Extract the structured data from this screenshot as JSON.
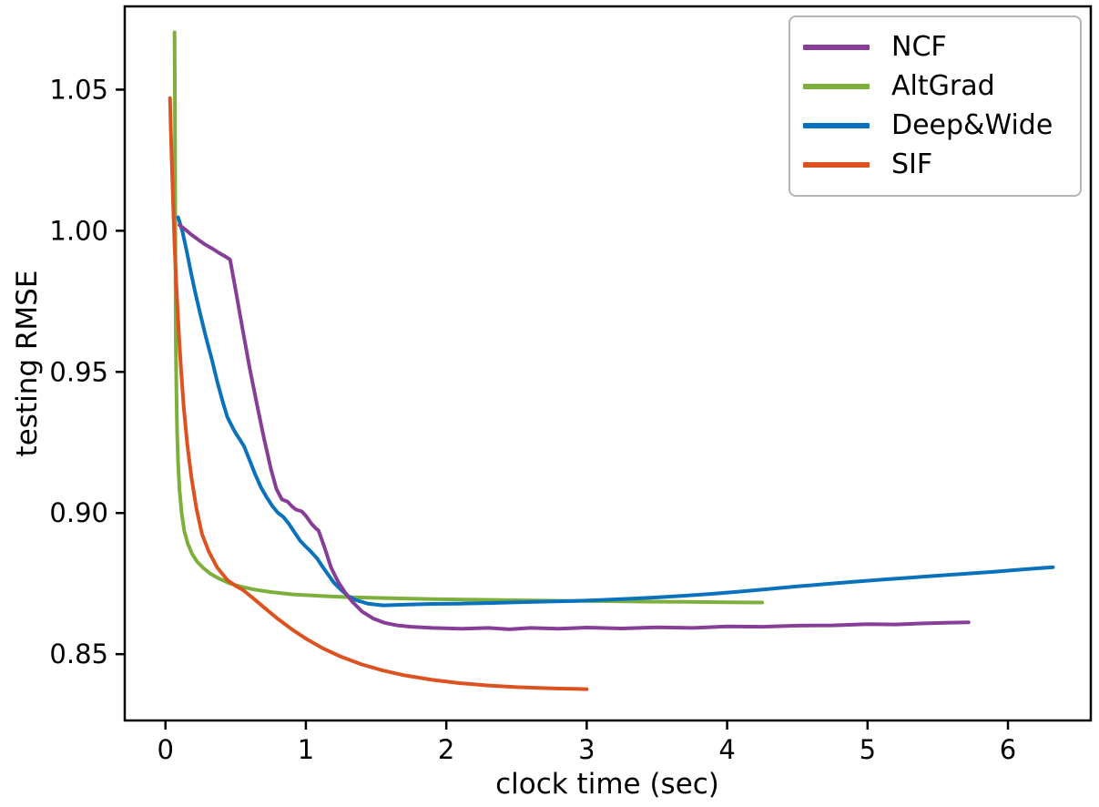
{
  "chart_data": {
    "type": "line",
    "title": "",
    "xlabel": "clock time (sec)",
    "ylabel": "testing RMSE",
    "xlim": [
      -0.29,
      6.59
    ],
    "ylim": [
      0.8265,
      1.0795
    ],
    "grid": false,
    "legend_position": "upper right",
    "xticks": [
      {
        "v": 0,
        "label": "0"
      },
      {
        "v": 1,
        "label": "1"
      },
      {
        "v": 2,
        "label": "2"
      },
      {
        "v": 3,
        "label": "3"
      },
      {
        "v": 4,
        "label": "4"
      },
      {
        "v": 5,
        "label": "5"
      },
      {
        "v": 6,
        "label": "6"
      }
    ],
    "yticks": [
      {
        "v": 0.85,
        "label": "0.85"
      },
      {
        "v": 0.9,
        "label": "0.90"
      },
      {
        "v": 0.95,
        "label": "0.95"
      },
      {
        "v": 1.0,
        "label": "1.00"
      },
      {
        "v": 1.05,
        "label": "1.05"
      }
    ],
    "series": [
      {
        "name": "NCF",
        "color": "#873E97",
        "zorder": 3,
        "points": [
          [
            0.1,
            1.002
          ],
          [
            0.14,
            1.0005
          ],
          [
            0.18,
            0.9988
          ],
          [
            0.23,
            0.997
          ],
          [
            0.28,
            0.9952
          ],
          [
            0.33,
            0.9938
          ],
          [
            0.38,
            0.9922
          ],
          [
            0.43,
            0.9908
          ],
          [
            0.46,
            0.9898
          ],
          [
            0.5,
            0.979
          ],
          [
            0.55,
            0.965
          ],
          [
            0.6,
            0.9512
          ],
          [
            0.65,
            0.9388
          ],
          [
            0.7,
            0.9268
          ],
          [
            0.75,
            0.9158
          ],
          [
            0.79,
            0.9085
          ],
          [
            0.83,
            0.9048
          ],
          [
            0.87,
            0.904
          ],
          [
            0.9,
            0.9024
          ],
          [
            0.93,
            0.9012
          ],
          [
            0.97,
            0.9006
          ],
          [
            1.0,
            0.899
          ],
          [
            1.04,
            0.8962
          ],
          [
            1.07,
            0.8946
          ],
          [
            1.09,
            0.8938
          ],
          [
            1.13,
            0.8882
          ],
          [
            1.18,
            0.8806
          ],
          [
            1.23,
            0.8756
          ],
          [
            1.28,
            0.8718
          ],
          [
            1.33,
            0.8686
          ],
          [
            1.4,
            0.8651
          ],
          [
            1.48,
            0.8626
          ],
          [
            1.56,
            0.8611
          ],
          [
            1.65,
            0.8602
          ],
          [
            1.75,
            0.8597
          ],
          [
            1.9,
            0.8593
          ],
          [
            2.1,
            0.859
          ],
          [
            2.3,
            0.8593
          ],
          [
            2.45,
            0.8588
          ],
          [
            2.6,
            0.8593
          ],
          [
            2.8,
            0.859
          ],
          [
            3.0,
            0.8594
          ],
          [
            3.25,
            0.8591
          ],
          [
            3.5,
            0.8595
          ],
          [
            3.75,
            0.8593
          ],
          [
            4.0,
            0.8598
          ],
          [
            4.25,
            0.8597
          ],
          [
            4.5,
            0.8601
          ],
          [
            4.75,
            0.8602
          ],
          [
            5.0,
            0.8606
          ],
          [
            5.2,
            0.8605
          ],
          [
            5.4,
            0.8609
          ],
          [
            5.55,
            0.8611
          ],
          [
            5.72,
            0.8613
          ]
        ]
      },
      {
        "name": "AltGrad",
        "color": "#7CAF3B",
        "zorder": 1,
        "points": [
          [
            0.065,
            1.0703
          ],
          [
            0.067,
            1.046
          ],
          [
            0.069,
            1.015
          ],
          [
            0.071,
            0.985
          ],
          [
            0.074,
            0.96
          ],
          [
            0.078,
            0.942
          ],
          [
            0.083,
            0.929
          ],
          [
            0.09,
            0.918
          ],
          [
            0.1,
            0.9085
          ],
          [
            0.115,
            0.9
          ],
          [
            0.135,
            0.8935
          ],
          [
            0.16,
            0.889
          ],
          [
            0.19,
            0.8855
          ],
          [
            0.225,
            0.8828
          ],
          [
            0.27,
            0.8805
          ],
          [
            0.32,
            0.8785
          ],
          [
            0.38,
            0.8768
          ],
          [
            0.45,
            0.8752
          ],
          [
            0.53,
            0.874
          ],
          [
            0.63,
            0.8729
          ],
          [
            0.75,
            0.872
          ],
          [
            0.9,
            0.8712
          ],
          [
            1.1,
            0.8706
          ],
          [
            1.35,
            0.8701
          ],
          [
            1.6,
            0.8698
          ],
          [
            1.9,
            0.8695
          ],
          [
            2.2,
            0.8693
          ],
          [
            2.5,
            0.8691
          ],
          [
            2.8,
            0.8689
          ],
          [
            3.1,
            0.8688
          ],
          [
            3.4,
            0.8686
          ],
          [
            3.7,
            0.8685
          ],
          [
            4.0,
            0.8684
          ],
          [
            4.25,
            0.8683
          ]
        ]
      },
      {
        "name": "Deep&Wide",
        "color": "#0A72BC",
        "zorder": 2,
        "points": [
          [
            0.09,
            1.0048
          ],
          [
            0.12,
            1.0
          ],
          [
            0.15,
            0.993
          ],
          [
            0.18,
            0.9856
          ],
          [
            0.21,
            0.9786
          ],
          [
            0.25,
            0.97
          ],
          [
            0.29,
            0.962
          ],
          [
            0.33,
            0.9545
          ],
          [
            0.37,
            0.9463
          ],
          [
            0.41,
            0.939
          ],
          [
            0.44,
            0.9341
          ],
          [
            0.47,
            0.9311
          ],
          [
            0.5,
            0.9283
          ],
          [
            0.53,
            0.926
          ],
          [
            0.56,
            0.9236
          ],
          [
            0.6,
            0.9186
          ],
          [
            0.64,
            0.9136
          ],
          [
            0.68,
            0.9091
          ],
          [
            0.72,
            0.9056
          ],
          [
            0.76,
            0.9026
          ],
          [
            0.8,
            0.9001
          ],
          [
            0.84,
            0.8986
          ],
          [
            0.88,
            0.8961
          ],
          [
            0.92,
            0.8931
          ],
          [
            0.96,
            0.8901
          ],
          [
            1.0,
            0.8881
          ],
          [
            1.04,
            0.8861
          ],
          [
            1.08,
            0.8839
          ],
          [
            1.12,
            0.8809
          ],
          [
            1.16,
            0.8781
          ],
          [
            1.2,
            0.8753
          ],
          [
            1.25,
            0.8728
          ],
          [
            1.3,
            0.8706
          ],
          [
            1.36,
            0.8691
          ],
          [
            1.44,
            0.8679
          ],
          [
            1.55,
            0.8673
          ],
          [
            1.7,
            0.8675
          ],
          [
            1.9,
            0.8678
          ],
          [
            2.1,
            0.8679
          ],
          [
            2.3,
            0.8681
          ],
          [
            2.5,
            0.8684
          ],
          [
            2.7,
            0.8686
          ],
          [
            2.9,
            0.8688
          ],
          [
            3.1,
            0.8692
          ],
          [
            3.3,
            0.8696
          ],
          [
            3.5,
            0.8701
          ],
          [
            3.7,
            0.8707
          ],
          [
            3.9,
            0.8714
          ],
          [
            4.1,
            0.8722
          ],
          [
            4.3,
            0.8731
          ],
          [
            4.5,
            0.874
          ],
          [
            4.7,
            0.8748
          ],
          [
            4.9,
            0.8756
          ],
          [
            5.1,
            0.8764
          ],
          [
            5.3,
            0.8771
          ],
          [
            5.5,
            0.8778
          ],
          [
            5.7,
            0.8785
          ],
          [
            5.9,
            0.8792
          ],
          [
            6.1,
            0.88
          ],
          [
            6.32,
            0.8808
          ]
        ]
      },
      {
        "name": "SIF",
        "color": "#DC5321",
        "zorder": 4,
        "points": [
          [
            0.032,
            1.047
          ],
          [
            0.038,
            1.036
          ],
          [
            0.045,
            1.024
          ],
          [
            0.054,
            1.01
          ],
          [
            0.065,
            0.995
          ],
          [
            0.078,
            0.98
          ],
          [
            0.093,
            0.9655
          ],
          [
            0.11,
            0.9515
          ],
          [
            0.13,
            0.9375
          ],
          [
            0.155,
            0.9245
          ],
          [
            0.185,
            0.9125
          ],
          [
            0.22,
            0.9018
          ],
          [
            0.26,
            0.8926
          ],
          [
            0.31,
            0.8862
          ],
          [
            0.37,
            0.8806
          ],
          [
            0.44,
            0.8763
          ],
          [
            0.5,
            0.8742
          ],
          [
            0.55,
            0.8728
          ],
          [
            0.62,
            0.87
          ],
          [
            0.7,
            0.8666
          ],
          [
            0.8,
            0.8625
          ],
          [
            0.9,
            0.8588
          ],
          [
            1.0,
            0.8555
          ],
          [
            1.12,
            0.8521
          ],
          [
            1.25,
            0.8491
          ],
          [
            1.4,
            0.8463
          ],
          [
            1.55,
            0.8442
          ],
          [
            1.7,
            0.8425
          ],
          [
            1.9,
            0.8409
          ],
          [
            2.1,
            0.8397
          ],
          [
            2.3,
            0.8389
          ],
          [
            2.5,
            0.8383
          ],
          [
            2.75,
            0.8379
          ],
          [
            3.0,
            0.8376
          ]
        ]
      }
    ]
  }
}
